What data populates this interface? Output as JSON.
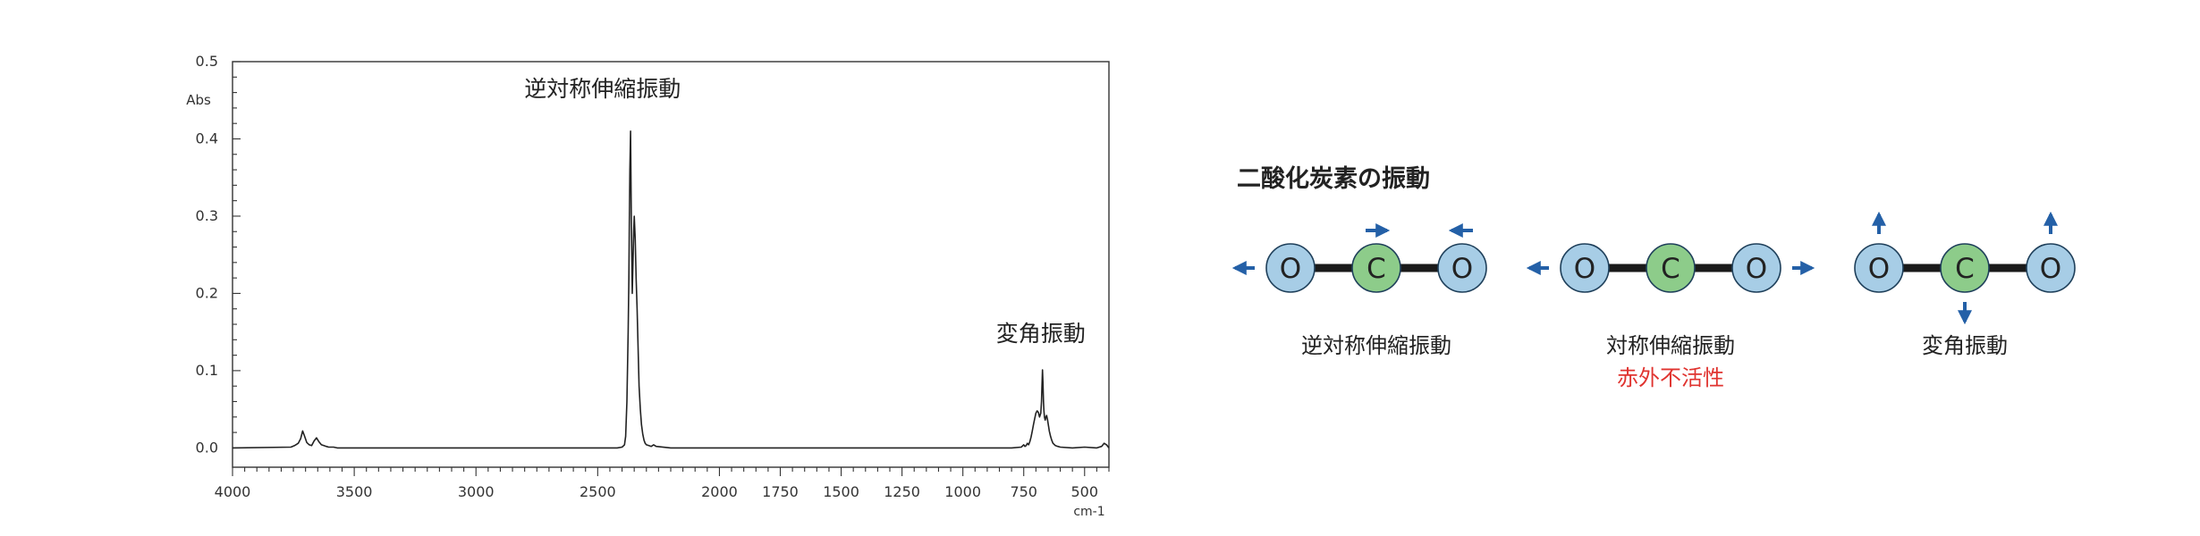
{
  "chart_data": {
    "type": "line",
    "title": "",
    "xlabel": "cm-1",
    "ylabel": "Abs",
    "xlim": [
      4000,
      400
    ],
    "ylim": [
      -0.025,
      0.5
    ],
    "x_reversed": true,
    "x_ticks": [
      4000,
      3500,
      3000,
      2500,
      2000,
      1750,
      1500,
      1250,
      1000,
      750,
      500
    ],
    "x_tick_labels": [
      "4000",
      "3500",
      "3000",
      "2500",
      "2000",
      "1750",
      "1500",
      "1250",
      "1000",
      "750",
      "500"
    ],
    "y_ticks": [
      0.0,
      0.1,
      0.2,
      0.3,
      0.4,
      0.5
    ],
    "y_tick_labels": [
      "0.0",
      "0.1",
      "0.2",
      "0.3",
      "0.4",
      "0.5"
    ],
    "grid": false,
    "series": [
      {
        "name": "",
        "color": "#222222",
        "x": [
          4000,
          3760,
          3745,
          3730,
          3720,
          3712,
          3705,
          3695,
          3685,
          3675,
          3665,
          3655,
          3645,
          3635,
          3625,
          3615,
          3605,
          3595,
          3585,
          3570,
          3500,
          3000,
          2500,
          2420,
          2400,
          2390,
          2385,
          2380,
          2375,
          2372,
          2370,
          2368,
          2365,
          2362,
          2358,
          2355,
          2352,
          2350,
          2346,
          2342,
          2338,
          2334,
          2330,
          2325,
          2320,
          2315,
          2310,
          2305,
          2300,
          2290,
          2280,
          2270,
          2260,
          2200,
          2000,
          1500,
          1000,
          800,
          760,
          750,
          745,
          740,
          735,
          730,
          725,
          720,
          715,
          710,
          705,
          700,
          695,
          690,
          685,
          680,
          677,
          675,
          673,
          671,
          669,
          667,
          665,
          662,
          659,
          656,
          652,
          648,
          645,
          640,
          635,
          630,
          620,
          610,
          600,
          550,
          500,
          450,
          430,
          420,
          410,
          400
        ],
        "y": [
          0.0,
          0.001,
          0.003,
          0.006,
          0.012,
          0.022,
          0.016,
          0.007,
          0.004,
          0.003,
          0.009,
          0.013,
          0.008,
          0.004,
          0.003,
          0.002,
          0.001,
          0.001,
          0.001,
          0.0,
          0.0,
          0.0,
          0.0,
          0.0,
          0.001,
          0.004,
          0.015,
          0.06,
          0.15,
          0.22,
          0.29,
          0.36,
          0.41,
          0.3,
          0.2,
          0.24,
          0.28,
          0.3,
          0.27,
          0.22,
          0.18,
          0.13,
          0.08,
          0.05,
          0.03,
          0.018,
          0.01,
          0.006,
          0.004,
          0.003,
          0.002,
          0.004,
          0.002,
          0.0,
          0.0,
          0.0,
          0.0,
          0.0,
          0.001,
          0.004,
          0.002,
          0.003,
          0.006,
          0.004,
          0.008,
          0.014,
          0.022,
          0.03,
          0.038,
          0.045,
          0.048,
          0.046,
          0.04,
          0.045,
          0.06,
          0.08,
          0.101,
          0.085,
          0.06,
          0.048,
          0.04,
          0.036,
          0.04,
          0.042,
          0.036,
          0.028,
          0.022,
          0.015,
          0.01,
          0.006,
          0.003,
          0.002,
          0.001,
          0.0,
          0.001,
          0.0,
          0.002,
          0.006,
          0.004,
          0.0
        ]
      }
    ],
    "annotations": [
      {
        "text": "逆対称伸縮振動",
        "x": 2480,
        "y": 0.455
      },
      {
        "text": "変角振動",
        "x": 680,
        "y": 0.138
      }
    ]
  },
  "diagram": {
    "title": "二酸化炭素の振動",
    "modes": [
      {
        "atoms": [
          "O",
          "C",
          "O"
        ],
        "label": "逆対称伸縮振動",
        "sublabel": "",
        "arrows": [
          "left",
          "right",
          "left"
        ]
      },
      {
        "atoms": [
          "O",
          "C",
          "O"
        ],
        "label": "対称伸縮振動",
        "sublabel": "赤外不活性",
        "arrows": [
          "left",
          "none",
          "right"
        ]
      },
      {
        "atoms": [
          "O",
          "C",
          "O"
        ],
        "label": "変角振動",
        "sublabel": "",
        "arrows": [
          "up",
          "down",
          "up"
        ]
      }
    ],
    "colors": {
      "oxygen": "#a7cde6",
      "carbon": "#8dcc8a",
      "bond": "#1a1a1a",
      "arrow": "#2460a7",
      "inactive_text": "#e0332f",
      "text": "#222222"
    }
  }
}
